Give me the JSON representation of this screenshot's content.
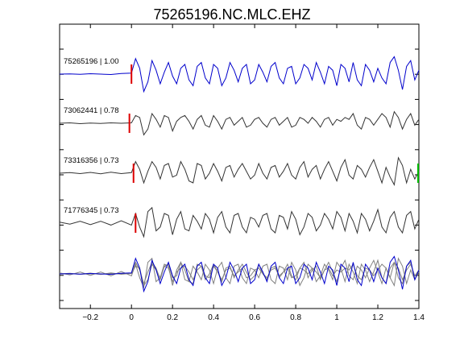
{
  "chart_data": {
    "type": "line",
    "title": "75265196.NC.MLC.EHZ",
    "xlabel": "",
    "ylabel": "",
    "xlim": [
      -0.35,
      1.4
    ],
    "xticks": [
      -0.2,
      0,
      0.2,
      0.4,
      0.6,
      0.8,
      1,
      1.2,
      1.4
    ],
    "xtick_labels": [
      "−0.2",
      "0",
      "0.2",
      "0.4",
      "0.6",
      "0.8",
      "1",
      "1.2",
      "1.4"
    ],
    "grid": false,
    "legend": "none",
    "colors": {
      "primary": "#0000cc",
      "secondary": "#333333",
      "overlay_gray": "#808080",
      "pick": "#dd0000",
      "end_pick": "#00bb00"
    },
    "series": [
      {
        "name": "75265196 | 1.00",
        "color": "#0000cc",
        "pick_time": 0.0,
        "t": [
          -0.35,
          -0.3,
          -0.25,
          -0.2,
          -0.15,
          -0.1,
          -0.05,
          0,
          0.02,
          0.04,
          0.06,
          0.08,
          0.1,
          0.12,
          0.14,
          0.16,
          0.18,
          0.2,
          0.22,
          0.24,
          0.26,
          0.28,
          0.3,
          0.32,
          0.34,
          0.36,
          0.38,
          0.4,
          0.42,
          0.44,
          0.46,
          0.48,
          0.5,
          0.52,
          0.54,
          0.56,
          0.58,
          0.6,
          0.62,
          0.64,
          0.66,
          0.68,
          0.7,
          0.72,
          0.74,
          0.76,
          0.78,
          0.8,
          0.82,
          0.84,
          0.86,
          0.88,
          0.9,
          0.92,
          0.94,
          0.96,
          0.98,
          1,
          1.02,
          1.04,
          1.06,
          1.08,
          1.1,
          1.12,
          1.14,
          1.16,
          1.18,
          1.2,
          1.22,
          1.24,
          1.26,
          1.28,
          1.3,
          1.32,
          1.34,
          1.36,
          1.38,
          1.4
        ],
        "y": [
          0,
          0.01,
          -0.01,
          0.02,
          0,
          -0.02,
          0.03,
          0.05,
          0.8,
          0.3,
          -0.9,
          -0.4,
          0.7,
          0.2,
          -0.5,
          0.1,
          0.6,
          -0.1,
          -0.5,
          0.3,
          0.5,
          -0.3,
          -0.6,
          0.4,
          0.6,
          -0.2,
          -0.5,
          0.5,
          0.3,
          -0.6,
          -0.2,
          0.6,
          0.2,
          -0.4,
          0.3,
          0.5,
          -0.5,
          -0.3,
          0.5,
          0.1,
          -0.4,
          0.4,
          0.6,
          -0.2,
          -0.5,
          0.3,
          0.4,
          -0.5,
          -0.2,
          0.5,
          0.3,
          -0.3,
          0.6,
          0.1,
          -0.5,
          0.4,
          0.2,
          -0.6,
          0.5,
          0.3,
          -0.4,
          0.6,
          -0.3,
          -0.6,
          0.5,
          0.2,
          -0.4,
          0.3,
          -0.2,
          -0.5,
          0.6,
          0.9,
          0.2,
          -0.8,
          0.4,
          0.7,
          -0.3,
          0.2
        ]
      },
      {
        "name": "73062441 | 0.78",
        "color": "#333333",
        "pick_time": -0.01,
        "t": [
          -0.35,
          -0.3,
          -0.25,
          -0.2,
          -0.15,
          -0.1,
          -0.05,
          0,
          0.02,
          0.04,
          0.06,
          0.08,
          0.1,
          0.12,
          0.14,
          0.16,
          0.18,
          0.2,
          0.22,
          0.24,
          0.26,
          0.28,
          0.3,
          0.32,
          0.34,
          0.36,
          0.38,
          0.4,
          0.42,
          0.44,
          0.46,
          0.48,
          0.5,
          0.52,
          0.54,
          0.56,
          0.58,
          0.6,
          0.62,
          0.64,
          0.66,
          0.68,
          0.7,
          0.72,
          0.74,
          0.76,
          0.78,
          0.8,
          0.82,
          0.84,
          0.86,
          0.88,
          0.9,
          0.92,
          0.94,
          0.96,
          0.98,
          1,
          1.02,
          1.04,
          1.06,
          1.08,
          1.1,
          1.12,
          1.14,
          1.16,
          1.18,
          1.2,
          1.22,
          1.24,
          1.26,
          1.28,
          1.3,
          1.32,
          1.34,
          1.36,
          1.38,
          1.4
        ],
        "y": [
          0,
          0.02,
          -0.02,
          0.01,
          -0.01,
          0.02,
          0,
          0.02,
          0.4,
          0.3,
          -0.6,
          -0.3,
          0.5,
          0.2,
          -0.2,
          0.4,
          0.3,
          -0.4,
          0.1,
          0.3,
          0.4,
          0.1,
          -0.3,
          0.2,
          0.4,
          -0.1,
          -0.2,
          0.4,
          0.1,
          -0.3,
          0.2,
          0.3,
          -0.1,
          0.1,
          0.3,
          -0.2,
          -0.1,
          0.2,
          0.3,
          0,
          -0.2,
          0.2,
          0.3,
          -0.1,
          0.1,
          0.3,
          -0.2,
          -0.1,
          0.3,
          0.2,
          0,
          0.3,
          0.1,
          -0.2,
          0.2,
          0.3,
          -0.1,
          0.2,
          0.1,
          0.3,
          0.2,
          0.5,
          -0.1,
          -0.3,
          0.3,
          0.2,
          -0.1,
          0.2,
          0.5,
          0.3,
          -0.2,
          0.6,
          0.3,
          -0.3,
          0.2,
          0.5,
          -0.1,
          0.2
        ]
      },
      {
        "name": "73316356 | 0.73",
        "color": "#333333",
        "pick_time": 0.01,
        "t": [
          -0.35,
          -0.3,
          -0.25,
          -0.2,
          -0.15,
          -0.1,
          -0.05,
          0,
          0.02,
          0.04,
          0.06,
          0.08,
          0.1,
          0.12,
          0.14,
          0.16,
          0.18,
          0.2,
          0.22,
          0.24,
          0.26,
          0.28,
          0.3,
          0.32,
          0.34,
          0.36,
          0.38,
          0.4,
          0.42,
          0.44,
          0.46,
          0.48,
          0.5,
          0.52,
          0.54,
          0.56,
          0.58,
          0.6,
          0.62,
          0.64,
          0.66,
          0.68,
          0.7,
          0.72,
          0.74,
          0.76,
          0.78,
          0.8,
          0.82,
          0.84,
          0.86,
          0.88,
          0.9,
          0.92,
          0.94,
          0.96,
          0.98,
          1,
          1.02,
          1.04,
          1.06,
          1.08,
          1.1,
          1.12,
          1.14,
          1.16,
          1.18,
          1.2,
          1.22,
          1.24,
          1.26,
          1.28,
          1.3,
          1.32,
          1.34,
          1.36,
          1.38,
          1.4
        ],
        "y": [
          0,
          0.03,
          -0.02,
          0.04,
          -0.03,
          0.05,
          -0.02,
          0.03,
          0.6,
          0.2,
          -0.5,
          0.1,
          0.6,
          0.3,
          -0.3,
          0.4,
          0.5,
          -0.2,
          -0.1,
          0.6,
          0.2,
          -0.4,
          -0.5,
          0.5,
          0.4,
          -0.3,
          0,
          0.5,
          0.1,
          -0.4,
          0.3,
          0.4,
          -0.2,
          0.2,
          0.5,
          0.1,
          -0.3,
          -0.1,
          0.5,
          0,
          -0.3,
          0.3,
          0.4,
          -0.2,
          0.1,
          0.5,
          -0.1,
          -0.3,
          0.3,
          0.6,
          -0.2,
          0.2,
          0.4,
          -0.3,
          0.2,
          0.6,
          0.1,
          -0.4,
          0.3,
          0.7,
          -0.1,
          -0.3,
          0.4,
          0.2,
          -0.2,
          0.3,
          0.7,
          0.1,
          -0.5,
          0.3,
          -0.2,
          -0.6,
          0.8,
          0.4,
          -0.5,
          0.2,
          -0.3,
          0.1
        ]
      },
      {
        "name": "71776345 | 0.73",
        "color": "#333333",
        "pick_time": 0.02,
        "t": [
          -0.35,
          -0.3,
          -0.25,
          -0.2,
          -0.15,
          -0.1,
          -0.05,
          0,
          0.02,
          0.04,
          0.06,
          0.08,
          0.1,
          0.12,
          0.14,
          0.16,
          0.18,
          0.2,
          0.22,
          0.24,
          0.26,
          0.28,
          0.3,
          0.32,
          0.34,
          0.36,
          0.38,
          0.4,
          0.42,
          0.44,
          0.46,
          0.48,
          0.5,
          0.52,
          0.54,
          0.56,
          0.58,
          0.6,
          0.62,
          0.64,
          0.66,
          0.68,
          0.7,
          0.72,
          0.74,
          0.76,
          0.78,
          0.8,
          0.82,
          0.84,
          0.86,
          0.88,
          0.9,
          0.92,
          0.94,
          0.96,
          0.98,
          1,
          1.02,
          1.04,
          1.06,
          1.08,
          1.1,
          1.12,
          1.14,
          1.16,
          1.18,
          1.2,
          1.22,
          1.24,
          1.26,
          1.28,
          1.3,
          1.32,
          1.34,
          1.36,
          1.38,
          1.4
        ],
        "y": [
          0.05,
          -0.05,
          0.1,
          -0.08,
          0.1,
          -0.1,
          0.12,
          -0.1,
          0.5,
          -0.2,
          -0.7,
          0.6,
          0.8,
          -0.4,
          -0.2,
          0.5,
          0.4,
          -0.6,
          0.2,
          0.6,
          -0.3,
          -0.4,
          0.4,
          0.1,
          -0.3,
          0.5,
          0.2,
          -0.5,
          0.3,
          0.6,
          -0.2,
          -0.5,
          0.4,
          0.5,
          -0.2,
          -0.5,
          0.3,
          0.2,
          -0.2,
          0.4,
          0.5,
          -0.3,
          -0.5,
          0.4,
          0.3,
          -0.3,
          0.6,
          0.2,
          -0.6,
          -0.2,
          0.5,
          0.3,
          -0.4,
          -0.1,
          0.5,
          0.2,
          -0.3,
          0.6,
          0.3,
          -0.4,
          0.5,
          0.1,
          -0.5,
          0.5,
          0.2,
          -0.4,
          0.1,
          0.7,
          -0.2,
          -0.5,
          0.3,
          0.6,
          -0.2,
          -0.5,
          0.4,
          0.6,
          -0.3,
          0.2
        ]
      }
    ]
  }
}
